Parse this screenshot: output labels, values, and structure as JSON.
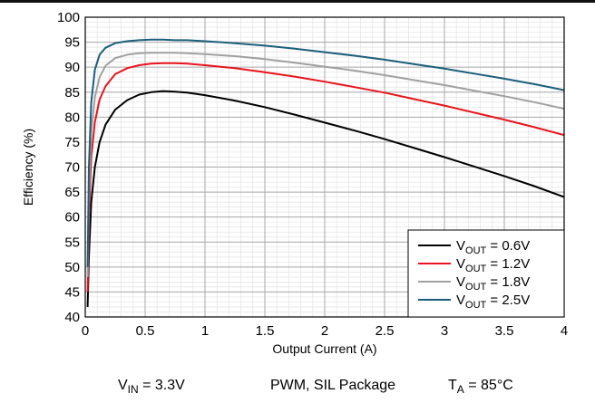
{
  "chart_data": {
    "type": "line",
    "title": "",
    "xlabel": "Output Current (A)",
    "ylabel": "Efficiency (%)",
    "xlim": [
      0,
      4
    ],
    "ylim": [
      40,
      100
    ],
    "xticks": [
      0,
      0.5,
      1,
      1.5,
      2,
      2.5,
      3,
      3.5,
      4
    ],
    "xtick_labels": [
      "0",
      "0.5",
      "1",
      "1.5",
      "2",
      "2.5",
      "3",
      "3.5",
      "4"
    ],
    "yticks": [
      40,
      45,
      50,
      55,
      60,
      65,
      70,
      75,
      80,
      85,
      90,
      95,
      100
    ],
    "ytick_labels": [
      "40",
      "45",
      "50",
      "55",
      "60",
      "65",
      "70",
      "75",
      "80",
      "85",
      "90",
      "95",
      "100"
    ],
    "grid": true,
    "legend_position": "bottom-right",
    "series": [
      {
        "name_main": "V",
        "name_sub": "OUT",
        "name_rest": " = 0.6V",
        "color": "#000000",
        "x": [
          0.02,
          0.03,
          0.05,
          0.08,
          0.12,
          0.17,
          0.25,
          0.35,
          0.45,
          0.55,
          0.65,
          0.75,
          0.85,
          1.0,
          1.25,
          1.5,
          1.75,
          2.0,
          2.25,
          2.5,
          2.75,
          3.0,
          3.25,
          3.5,
          3.75,
          4.0
        ],
        "y": [
          42,
          52,
          63,
          70,
          75,
          78.5,
          81.5,
          83.4,
          84.5,
          85.0,
          85.2,
          85.1,
          84.9,
          84.4,
          83.3,
          82.0,
          80.5,
          78.9,
          77.3,
          75.6,
          73.8,
          72.0,
          70.1,
          68.2,
          66.2,
          64.0
        ]
      },
      {
        "name_main": "V",
        "name_sub": "OUT",
        "name_rest": " = 1.2V",
        "color": "#e8141b",
        "x": [
          0.02,
          0.03,
          0.05,
          0.08,
          0.12,
          0.17,
          0.25,
          0.35,
          0.45,
          0.55,
          0.65,
          0.75,
          0.85,
          1.0,
          1.25,
          1.5,
          1.75,
          2.0,
          2.25,
          2.5,
          2.75,
          3.0,
          3.25,
          3.5,
          3.75,
          4.0
        ],
        "y": [
          45,
          60,
          72,
          79,
          83.5,
          86.2,
          88.6,
          89.8,
          90.4,
          90.7,
          90.8,
          90.8,
          90.7,
          90.4,
          89.8,
          89.0,
          88.1,
          87.1,
          86.0,
          84.9,
          83.6,
          82.3,
          80.9,
          79.5,
          78.0,
          76.4
        ]
      },
      {
        "name_main": "V",
        "name_sub": "OUT",
        "name_rest": " = 1.8V",
        "color": "#a0a0a0",
        "x": [
          0.02,
          0.03,
          0.05,
          0.08,
          0.12,
          0.17,
          0.25,
          0.35,
          0.45,
          0.55,
          0.65,
          0.75,
          0.85,
          1.0,
          1.25,
          1.5,
          1.75,
          2.0,
          2.25,
          2.5,
          2.75,
          3.0,
          3.25,
          3.5,
          3.75,
          4.0
        ],
        "y": [
          48,
          64,
          77,
          84,
          88,
          90.3,
          91.8,
          92.5,
          92.8,
          92.9,
          92.9,
          92.9,
          92.8,
          92.6,
          92.2,
          91.6,
          90.9,
          90.1,
          89.3,
          88.4,
          87.4,
          86.4,
          85.3,
          84.2,
          83.0,
          81.7
        ]
      },
      {
        "name_main": "V",
        "name_sub": "OUT",
        "name_rest": " = 2.5V",
        "color": "#1b5e7a",
        "x": [
          0.02,
          0.03,
          0.05,
          0.08,
          0.12,
          0.17,
          0.25,
          0.35,
          0.45,
          0.55,
          0.65,
          0.75,
          0.85,
          1.0,
          1.25,
          1.5,
          1.75,
          2.0,
          2.25,
          2.5,
          2.75,
          3.0,
          3.25,
          3.5,
          3.75,
          4.0
        ],
        "y": [
          50,
          70,
          83,
          89.5,
          92.5,
          93.9,
          94.8,
          95.2,
          95.4,
          95.5,
          95.5,
          95.4,
          95.4,
          95.2,
          94.8,
          94.3,
          93.7,
          93.0,
          92.3,
          91.5,
          90.6,
          89.7,
          88.7,
          87.7,
          86.6,
          85.4
        ]
      }
    ]
  },
  "conditions": {
    "vin_main": "V",
    "vin_sub": "IN",
    "vin_rest": " = 3.3V",
    "mode": "PWM, SIL Package",
    "ta_main": "T",
    "ta_sub": "A",
    "ta_rest": " = 85°C"
  }
}
